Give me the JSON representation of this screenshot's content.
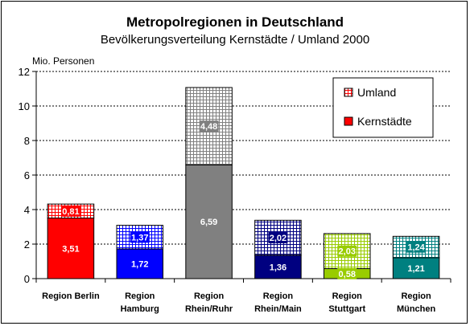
{
  "chart_data": {
    "type": "bar",
    "stacked": true,
    "title": "Metropolregionen in Deutschland",
    "subtitle": "Bevölkerungsverteilung Kernstädte / Umland 2000",
    "ylabel": "Mio. Personen",
    "ylim": [
      0,
      12
    ],
    "yticks": [
      "0",
      "2",
      "4",
      "6",
      "8",
      "10",
      "12"
    ],
    "grid": true,
    "legend_position": "top-right",
    "categories": [
      [
        "Region Berlin"
      ],
      [
        "Region",
        "Hamburg"
      ],
      [
        "Region",
        "Rhein/Ruhr"
      ],
      [
        "Region",
        "Rhein/Main"
      ],
      [
        "Region",
        "Stuttgart"
      ],
      [
        "Region",
        "München"
      ]
    ],
    "series": [
      {
        "name": "Kernstädte",
        "values": [
          3.51,
          1.72,
          6.59,
          1.36,
          0.58,
          1.21
        ],
        "labels": [
          "3,51",
          "1,72",
          "6,59",
          "1,36",
          "0,58",
          "1,21"
        ]
      },
      {
        "name": "Umland",
        "values": [
          0.81,
          1.37,
          4.48,
          2.02,
          2.03,
          1.24
        ],
        "labels": [
          "0,81",
          "1,37",
          "4,48",
          "2,02",
          "2,03",
          "1,24"
        ]
      }
    ],
    "colors": [
      "#ff0000",
      "#0000ff",
      "#808080",
      "#000080",
      "#99cc00",
      "#008080"
    ],
    "legend_colors": {
      "Kernstädte": "#ff0000",
      "Umland": "#ff0000"
    }
  }
}
